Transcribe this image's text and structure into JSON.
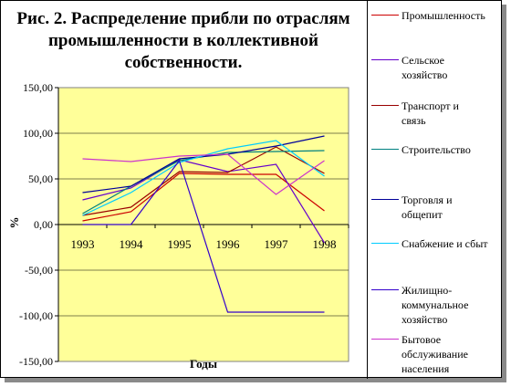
{
  "chart_data": {
    "type": "line",
    "title": "Рис. 2. Распределение прибли по отраслям промышленности в коллективной собственности.",
    "xlabel": "Годы",
    "ylabel": "%",
    "categories": [
      "1993",
      "1994",
      "1995",
      "1996",
      "1997",
      "1998"
    ],
    "ylim": [
      -150,
      150
    ],
    "yticks": [
      "150,00",
      "100,00",
      "50,00",
      "0,00",
      "-50,00",
      "-100,00",
      "-150,00"
    ],
    "ytick_values": [
      150,
      100,
      50,
      0,
      -50,
      -100,
      -150
    ],
    "plot_background": "#FFFF99",
    "grid": "horizontal",
    "legend_position": "right",
    "series": [
      {
        "name": "Промышленность",
        "color": "#CC0000",
        "values": [
          4,
          14,
          56,
          55,
          55,
          15
        ]
      },
      {
        "name": "Сельское\nхозяйство",
        "color": "#6600CC",
        "values": [
          27,
          40,
          71,
          58,
          66,
          -20
        ]
      },
      {
        "name": "Транспорт и\nсвязь",
        "color": "#990000",
        "values": [
          10,
          19,
          58,
          57,
          85,
          56
        ]
      },
      {
        "name": "Строительство",
        "color": "#008080",
        "values": [
          12,
          42,
          70,
          79,
          80,
          81
        ]
      },
      {
        "name": "Торговля и\nобщепит",
        "color": "#000099",
        "values": [
          35,
          42,
          72,
          77,
          86,
          97
        ]
      },
      {
        "name": "Снабжение и сбыт",
        "color": "#00CCFF",
        "values": [
          10,
          35,
          68,
          83,
          92,
          53
        ]
      },
      {
        "name": "Жилищно-\nкоммунальное\nхозяйство",
        "color": "#3300CC",
        "values": [
          0,
          0,
          70,
          -96,
          -96,
          -96
        ]
      },
      {
        "name": "Бытовое\nобслуживание\nнаселения",
        "color": "#CC33CC",
        "values": [
          72,
          69,
          75,
          77,
          33,
          70
        ]
      }
    ]
  }
}
